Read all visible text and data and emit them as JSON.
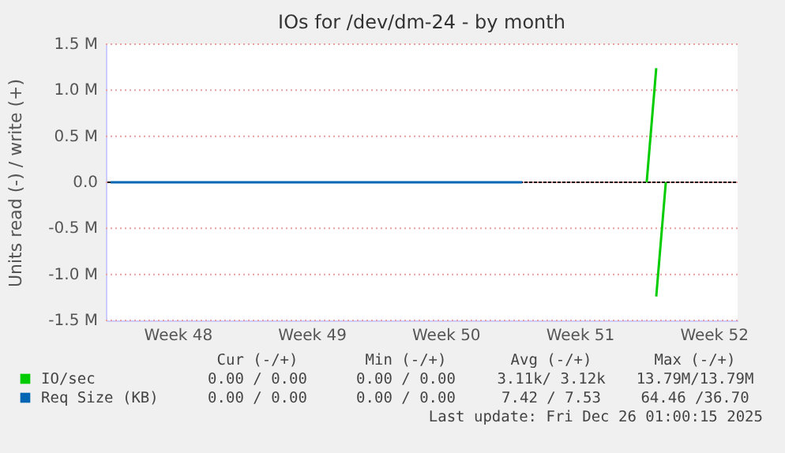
{
  "chart_data": {
    "type": "line",
    "title": "IOs for /dev/dm-24 - by month",
    "ylabel": "Units read (-) / write (+)",
    "categories": [
      null,
      null,
      null,
      null,
      null,
      null,
      null,
      "Week 48",
      null,
      null,
      null,
      null,
      null,
      null,
      null,
      null,
      null,
      null,
      null,
      null,
      null,
      "Week 49",
      null,
      null,
      null,
      null,
      null,
      null,
      null,
      null,
      null,
      null,
      null,
      null,
      null,
      "Week 50",
      null,
      null,
      null,
      null,
      null,
      null,
      null,
      null,
      null,
      null,
      null,
      null,
      null,
      "Week 51",
      null,
      null,
      null,
      null,
      null,
      null,
      null,
      null,
      null,
      null,
      null,
      null,
      null,
      "Week 52",
      null,
      null
    ],
    "ylim": [
      -1500000,
      1500000
    ],
    "yticks": [
      {
        "value": -1500000,
        "label": "-1.5 M"
      },
      {
        "value": -1000000,
        "label": "-1.0 M"
      },
      {
        "value": -500000,
        "label": "-0.5 M"
      },
      {
        "value": 0,
        "label": "0.0"
      },
      {
        "value": 500000,
        "label": "0.5 M"
      },
      {
        "value": 1000000,
        "label": "1.0 M"
      },
      {
        "value": 1500000,
        "label": "1.5 M"
      }
    ],
    "grid": "y",
    "legend": "bottom",
    "series": [
      {
        "name": "IO/sec",
        "color": "#00cc00",
        "values": [
          null,
          null,
          null,
          null,
          null,
          null,
          null,
          null,
          null,
          null,
          null,
          null,
          null,
          null,
          null,
          null,
          null,
          null,
          null,
          null,
          null,
          null,
          null,
          null,
          null,
          null,
          null,
          null,
          null,
          null,
          null,
          null,
          null,
          null,
          null,
          null,
          null,
          null,
          null,
          null,
          null,
          null,
          null,
          null,
          null,
          null,
          null,
          null,
          null,
          null,
          null,
          null,
          null,
          null,
          null,
          null,
          0,
          1240000,
          null,
          null,
          null,
          null,
          null,
          null,
          null,
          null
        ]
      },
      {
        "color": "#00cc00",
        "values": [
          null,
          null,
          null,
          null,
          null,
          null,
          null,
          null,
          null,
          null,
          null,
          null,
          null,
          null,
          null,
          null,
          null,
          null,
          null,
          null,
          null,
          null,
          null,
          null,
          null,
          null,
          null,
          null,
          null,
          null,
          null,
          null,
          null,
          null,
          null,
          null,
          null,
          null,
          null,
          null,
          null,
          null,
          null,
          null,
          null,
          null,
          null,
          null,
          null,
          null,
          null,
          null,
          null,
          null,
          null,
          null,
          null,
          -1240000,
          0,
          null,
          null,
          null,
          null,
          null,
          null,
          null
        ]
      },
      {
        "name": "Req Size (KB)",
        "color": "#0066b3",
        "values": [
          0,
          0,
          0,
          0,
          0,
          0,
          0,
          0,
          0,
          0,
          0,
          0,
          0,
          0,
          0,
          0,
          0,
          0,
          0,
          0,
          0,
          0,
          0,
          0,
          0,
          0,
          0,
          0,
          0,
          0,
          0,
          0,
          0,
          0,
          0,
          0,
          0,
          0,
          0,
          0,
          0,
          0,
          0,
          0,
          null,
          null,
          null,
          null,
          null,
          null,
          null,
          null,
          null,
          null,
          null,
          null,
          null,
          null,
          null,
          null,
          null,
          null,
          null,
          null,
          null,
          null
        ]
      }
    ],
    "ref_lines": [
      {
        "axis": "y",
        "value": 0,
        "color": "#000000"
      }
    ],
    "annotations": [
      "Cur (-/+)",
      "Min (-/+)",
      "Avg (-/+)",
      "Max (-/+)",
      "0.00 / 0.00",
      "0.00 / 0.00",
      "3.11k/ 3.12k",
      "13.79M/13.79M",
      "0.00 / 0.00",
      "0.00 / 0.00",
      "7.42 / 7.53",
      "64.46 /36.70",
      "Last update: Fri Dec 26 01:00:15 2025"
    ]
  }
}
